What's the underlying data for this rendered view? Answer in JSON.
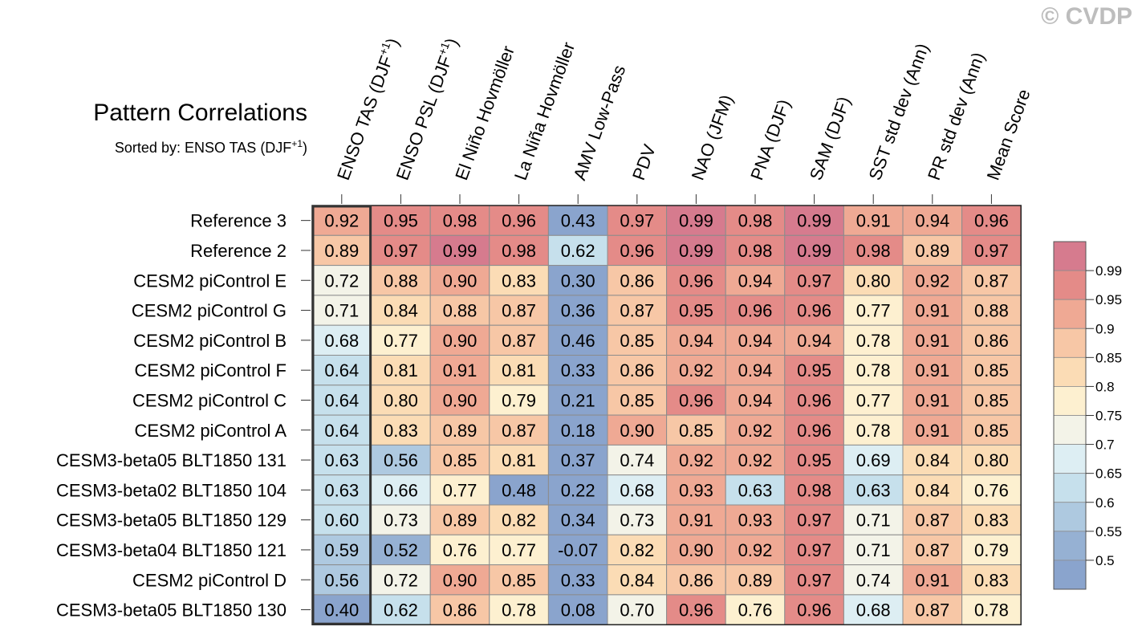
{
  "watermark": "© CVDP",
  "chart_data": {
    "type": "heatmap",
    "title": "Pattern Correlations",
    "subtitle": {
      "prefix": "Sorted by: ENSO TAS (DJF",
      "sup": "+1",
      "suffix": ")"
    },
    "columns": [
      {
        "label": "ENSO TAS (DJF",
        "sup": "+1",
        "suffix": ")"
      },
      {
        "label": "ENSO PSL (DJF",
        "sup": "+1",
        "suffix": ")"
      },
      {
        "label": "El Niño Hovmöller"
      },
      {
        "label": "La Niña Hovmöller"
      },
      {
        "label": "AMV Low-Pass"
      },
      {
        "label": "PDV"
      },
      {
        "label": "NAO (JFM)"
      },
      {
        "label": "PNA (DJF)"
      },
      {
        "label": "SAM (DJF)"
      },
      {
        "label": "SST std dev (Ann)"
      },
      {
        "label": "PR std dev (Ann)"
      },
      {
        "label": "Mean Score"
      }
    ],
    "rows": [
      "Reference 3",
      "Reference 2",
      "CESM2 piControl E",
      "CESM2 piControl G",
      "CESM2 piControl B",
      "CESM2 piControl F",
      "CESM2 piControl C",
      "CESM2 piControl A",
      "CESM3-beta05 BLT1850 131",
      "CESM3-beta02 BLT1850 104",
      "CESM3-beta05 BLT1850 129",
      "CESM3-beta04 BLT1850 121",
      "CESM2 piControl D",
      "CESM3-beta05 BLT1850 130"
    ],
    "values": [
      [
        "0.92",
        "0.95",
        "0.98",
        "0.96",
        "0.43",
        "0.97",
        "0.99",
        "0.98",
        "0.99",
        "0.91",
        "0.94",
        "0.96"
      ],
      [
        "0.89",
        "0.97",
        "0.99",
        "0.98",
        "0.62",
        "0.96",
        "0.99",
        "0.98",
        "0.99",
        "0.98",
        "0.89",
        "0.97"
      ],
      [
        "0.72",
        "0.88",
        "0.90",
        "0.83",
        "0.30",
        "0.86",
        "0.96",
        "0.94",
        "0.97",
        "0.80",
        "0.92",
        "0.87"
      ],
      [
        "0.71",
        "0.84",
        "0.88",
        "0.87",
        "0.36",
        "0.87",
        "0.95",
        "0.96",
        "0.96",
        "0.77",
        "0.91",
        "0.88"
      ],
      [
        "0.68",
        "0.77",
        "0.90",
        "0.87",
        "0.46",
        "0.85",
        "0.94",
        "0.94",
        "0.94",
        "0.78",
        "0.91",
        "0.86"
      ],
      [
        "0.64",
        "0.81",
        "0.91",
        "0.81",
        "0.33",
        "0.86",
        "0.92",
        "0.94",
        "0.95",
        "0.78",
        "0.91",
        "0.85"
      ],
      [
        "0.64",
        "0.80",
        "0.90",
        "0.79",
        "0.21",
        "0.85",
        "0.96",
        "0.94",
        "0.96",
        "0.77",
        "0.91",
        "0.85"
      ],
      [
        "0.64",
        "0.83",
        "0.89",
        "0.87",
        "0.18",
        "0.90",
        "0.85",
        "0.92",
        "0.96",
        "0.78",
        "0.91",
        "0.85"
      ],
      [
        "0.63",
        "0.56",
        "0.85",
        "0.81",
        "0.37",
        "0.74",
        "0.92",
        "0.92",
        "0.95",
        "0.69",
        "0.84",
        "0.80"
      ],
      [
        "0.63",
        "0.66",
        "0.77",
        "0.48",
        "0.22",
        "0.68",
        "0.93",
        "0.63",
        "0.98",
        "0.63",
        "0.84",
        "0.76"
      ],
      [
        "0.60",
        "0.73",
        "0.89",
        "0.82",
        "0.34",
        "0.73",
        "0.91",
        "0.93",
        "0.97",
        "0.71",
        "0.87",
        "0.83"
      ],
      [
        "0.59",
        "0.52",
        "0.76",
        "0.77",
        "-0.07",
        "0.82",
        "0.90",
        "0.92",
        "0.97",
        "0.71",
        "0.87",
        "0.79"
      ],
      [
        "0.56",
        "0.72",
        "0.90",
        "0.85",
        "0.33",
        "0.84",
        "0.86",
        "0.89",
        "0.97",
        "0.74",
        "0.91",
        "0.83"
      ],
      [
        "0.40",
        "0.62",
        "0.86",
        "0.78",
        "0.08",
        "0.70",
        "0.96",
        "0.76",
        "0.96",
        "0.68",
        "0.87",
        "0.78"
      ]
    ],
    "highlighted_column": 0,
    "colorbar": {
      "levels": [
        "0.99",
        "0.95",
        "0.9",
        "0.85",
        "0.8",
        "0.75",
        "0.7",
        "0.65",
        "0.6",
        "0.55",
        "0.5"
      ],
      "bin_thresholds": [
        0.99,
        0.95,
        0.9,
        0.85,
        0.8,
        0.75,
        0.7,
        0.65,
        0.6,
        0.55,
        0.5
      ],
      "colors": [
        "#d67b8e",
        "#e48b88",
        "#efa994",
        "#f7c7a6",
        "#fbdcb5",
        "#fdf0d0",
        "#f3f3e8",
        "#ddeef3",
        "#c6e0ec",
        "#aec9e0",
        "#96b1d3",
        "#8aa4cd"
      ]
    }
  }
}
